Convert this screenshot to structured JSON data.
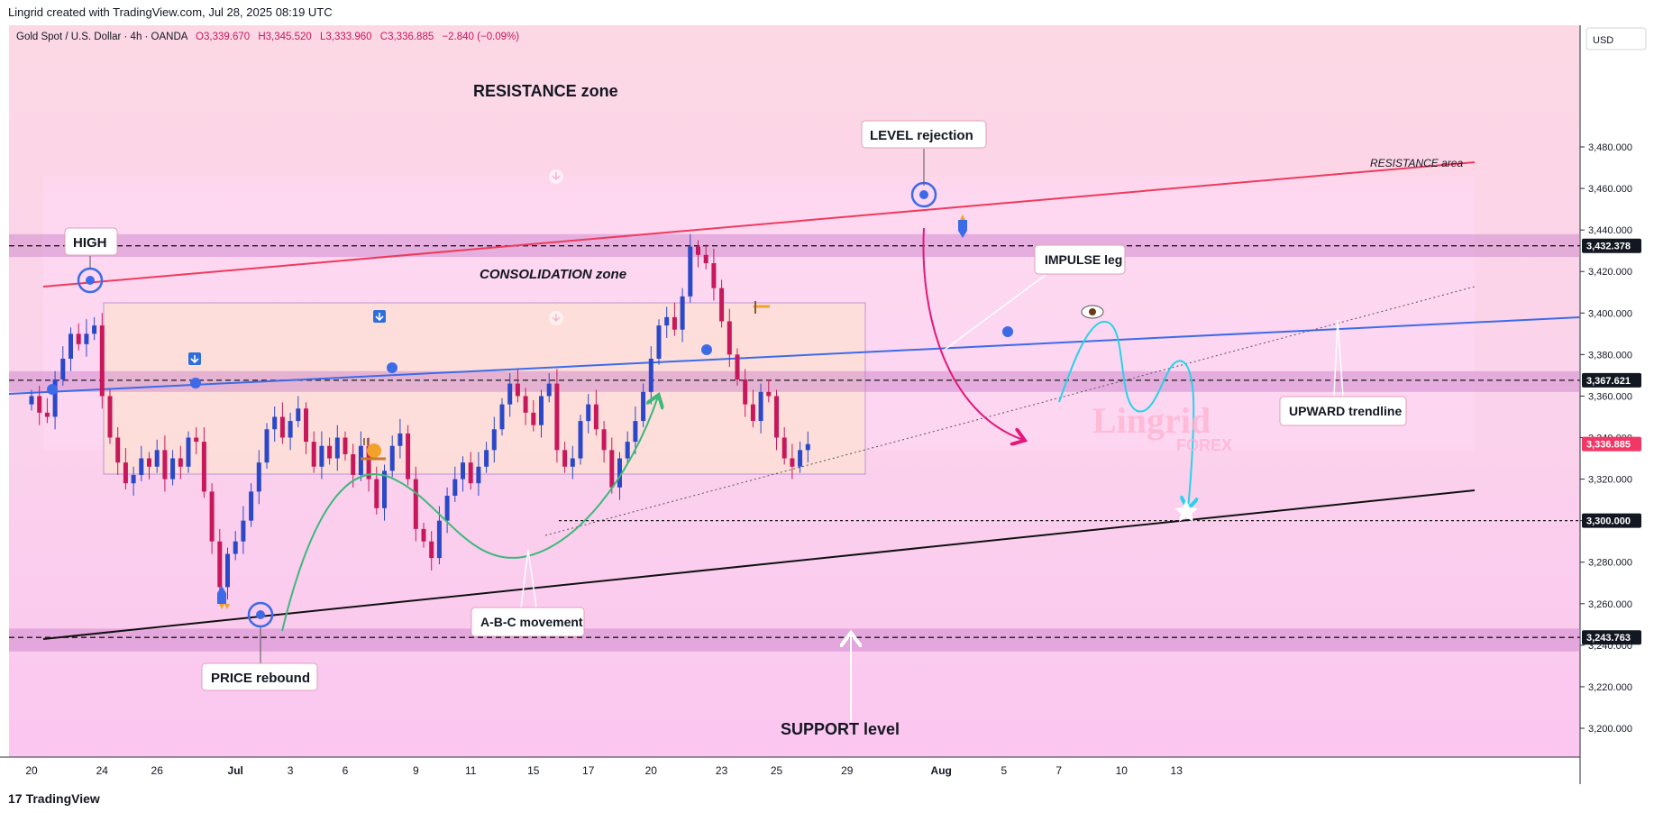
{
  "header": {
    "attribution": "Lingrid created with TradingView.com, Jul 28, 2025 08:19 UTC",
    "symbol_line": "Gold Spot / U.S. Dollar · 4h · OANDA",
    "ohlc": {
      "o": "O3,339.670",
      "h": "H3,345.520",
      "l": "L3,333.960",
      "c": "C3,336.885",
      "chg": "−2.840 (−0.09%)"
    },
    "currency": "USD"
  },
  "footer": {
    "logo": "TradingView"
  },
  "watermark": {
    "line1": "Lingrid",
    "line2": "FOREX"
  },
  "colors": {
    "up": "#2a48c8",
    "down": "#c8185c",
    "resistance_line": "#ef3a5d",
    "trendline": "#3d6be8",
    "support_line": "#111111",
    "zone": "#c77cc7",
    "projection": "#27d3e8",
    "abc_curve": "#3cb87a",
    "impulse_arrow": "#e0197a",
    "price_badge": "#f23666"
  },
  "chart_data": {
    "type": "candlestick",
    "symbol": "Gold Spot / U.S. Dollar",
    "timeframe": "4h",
    "y_axis": {
      "ticks": [
        3200,
        3220,
        3240,
        3260,
        3280,
        3300,
        3320,
        3340,
        3360,
        3380,
        3400,
        3420,
        3440,
        3460,
        3480
      ],
      "tick_labels": [
        "3,200.000",
        "3,220.000",
        "3,240.000",
        "3,260.000",
        "3,280.000",
        "3,300.000",
        "3,320.000",
        "3,340.000",
        "3,360.000",
        "3,380.000",
        "3,400.000",
        "3,420.000",
        "3,440.000",
        "3,460.000",
        "3,480.000"
      ],
      "range": [
        3185,
        3500
      ]
    },
    "x_axis": {
      "labels": [
        "20",
        "24",
        "26",
        "Jul",
        "3",
        "6",
        "9",
        "11",
        "15",
        "17",
        "20",
        "23",
        "25",
        "29",
        "Aug",
        "5",
        "7",
        "10",
        "13"
      ],
      "label_index": [
        0,
        9,
        16,
        26,
        33,
        40,
        49,
        56,
        64,
        71,
        79,
        88,
        95,
        104,
        116,
        124,
        131,
        139,
        146
      ]
    },
    "price_levels": [
      {
        "value": 3432.378,
        "label": "3,432.378",
        "style": "dashed"
      },
      {
        "value": 3367.621,
        "label": "3,367.621",
        "style": "dashed"
      },
      {
        "value": 3300.0,
        "label": "3,300.000",
        "style": "dotted"
      },
      {
        "value": 3243.763,
        "label": "3,243.763",
        "style": "dashed"
      },
      {
        "value": 3336.885,
        "label": "3,336.885",
        "style": "current"
      }
    ],
    "zones": [
      {
        "name": "resistance",
        "from": 3427,
        "to": 3438
      },
      {
        "name": "middle",
        "from": 3362,
        "to": 3372
      },
      {
        "name": "support",
        "from": 3237,
        "to": 3248
      }
    ],
    "closes": [
      3360,
      3352,
      3350,
      3368,
      3378,
      3390,
      3385,
      3390,
      3394,
      3360,
      3340,
      3328,
      3318,
      3322,
      3330,
      3326,
      3334,
      3320,
      3330,
      3326,
      3340,
      3338,
      3314,
      3290,
      3268,
      3284,
      3290,
      3300,
      3314,
      3328,
      3344,
      3350,
      3340,
      3348,
      3354,
      3338,
      3326,
      3336,
      3330,
      3340,
      3332,
      3322,
      3336,
      3320,
      3306,
      3324,
      3336,
      3342,
      3320,
      3296,
      3290,
      3282,
      3300,
      3312,
      3320,
      3328,
      3318,
      3326,
      3334,
      3344,
      3356,
      3366,
      3360,
      3352,
      3346,
      3360,
      3366,
      3334,
      3326,
      3330,
      3348,
      3356,
      3344,
      3334,
      3316,
      3330,
      3338,
      3348,
      3362,
      3378,
      3394,
      3398,
      3392,
      3408,
      3432,
      3428,
      3424,
      3412,
      3396,
      3380,
      3368,
      3356,
      3348,
      3362,
      3360,
      3340,
      3330,
      3326,
      3334,
      3336.885
    ],
    "annotations": [
      {
        "id": "resistance-zone",
        "text": "RESISTANCE zone"
      },
      {
        "id": "level-rejection",
        "text": "LEVEL rejection"
      },
      {
        "id": "resistance-area",
        "text": "RESISTANCE area"
      },
      {
        "id": "high",
        "text": "HIGH"
      },
      {
        "id": "impulse-leg",
        "text": "IMPULSE leg"
      },
      {
        "id": "consolidation-zone",
        "text": "CONSOLIDATION zone"
      },
      {
        "id": "upward-trendline",
        "text": "UPWARD trendline"
      },
      {
        "id": "abc-movement",
        "text": "A-B-C movement"
      },
      {
        "id": "price-rebound",
        "text": "PRICE rebound"
      },
      {
        "id": "support-level",
        "text": "SUPPORT level"
      }
    ]
  }
}
